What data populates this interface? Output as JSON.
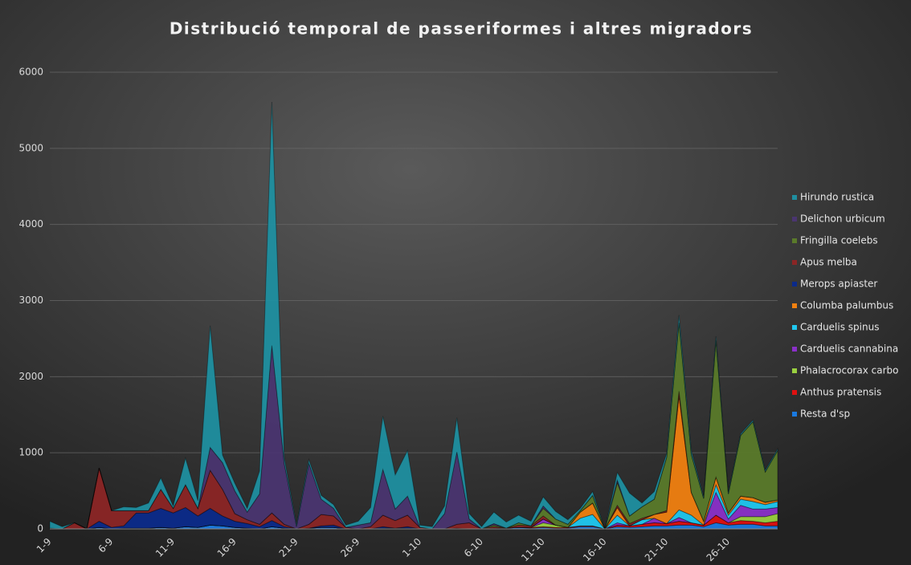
{
  "chart_data": {
    "type": "stacked-area",
    "title": "Distribució temporal de passeriformes i altres migradors",
    "categories": [
      "1-9",
      null,
      null,
      null,
      null,
      "6-9",
      null,
      null,
      null,
      null,
      "11-9",
      null,
      null,
      null,
      null,
      "16-9",
      null,
      null,
      null,
      null,
      "21-9",
      null,
      null,
      null,
      null,
      "26-9",
      null,
      null,
      null,
      null,
      "1-10",
      null,
      null,
      null,
      null,
      "6-10",
      null,
      null,
      null,
      null,
      "11-10",
      null,
      null,
      null,
      null,
      "16-10",
      null,
      null,
      null,
      null,
      "21-10",
      null,
      null,
      null,
      null,
      "26-10",
      null,
      null,
      null,
      null
    ],
    "series": [
      {
        "name": "Hirundo rustica",
        "color": "#1f8fa0",
        "values": [
          90,
          30,
          0,
          0,
          0,
          0,
          50,
          40,
          100,
          150,
          30,
          350,
          100,
          1600,
          100,
          100,
          50,
          300,
          3200,
          80,
          20,
          50,
          50,
          50,
          30,
          50,
          200,
          700,
          450,
          600,
          30,
          30,
          100,
          450,
          70,
          30,
          150,
          80,
          100,
          60,
          120,
          100,
          60,
          30,
          50,
          0,
          100,
          300,
          50,
          100,
          50,
          100,
          50,
          20,
          50,
          20,
          20,
          20,
          20,
          20
        ]
      },
      {
        "name": "Delichon urbicum",
        "color": "#4a3570",
        "values": [
          0,
          0,
          0,
          0,
          0,
          0,
          0,
          0,
          0,
          0,
          0,
          0,
          0,
          300,
          350,
          300,
          100,
          400,
          2200,
          800,
          30,
          800,
          200,
          100,
          0,
          50,
          50,
          600,
          150,
          250,
          0,
          0,
          200,
          950,
          50,
          0,
          20,
          0,
          0,
          0,
          30,
          0,
          0,
          0,
          0,
          0,
          30,
          0,
          0,
          0,
          0,
          0,
          0,
          0,
          0,
          0,
          0,
          0,
          0,
          0
        ]
      },
      {
        "name": "Fringilla coelebs",
        "color": "#5a7a2a",
        "values": [
          0,
          0,
          0,
          0,
          0,
          0,
          0,
          0,
          0,
          0,
          0,
          0,
          0,
          0,
          0,
          0,
          0,
          0,
          0,
          0,
          0,
          0,
          0,
          0,
          0,
          0,
          0,
          0,
          0,
          0,
          0,
          0,
          0,
          0,
          0,
          0,
          20,
          0,
          30,
          0,
          100,
          80,
          40,
          20,
          100,
          0,
          300,
          100,
          150,
          200,
          700,
          900,
          500,
          300,
          1800,
          250,
          800,
          1000,
          400,
          650
        ]
      },
      {
        "name": "Apus melba",
        "color": "#8b2525",
        "values": [
          0,
          0,
          80,
          0,
          700,
          220,
          200,
          30,
          30,
          250,
          60,
          300,
          100,
          500,
          350,
          100,
          50,
          30,
          100,
          30,
          0,
          50,
          150,
          120,
          20,
          0,
          30,
          150,
          100,
          150,
          20,
          0,
          0,
          50,
          80,
          0,
          20,
          0,
          30,
          20,
          40,
          0,
          0,
          0,
          0,
          0,
          30,
          30,
          20,
          0,
          20,
          60,
          0,
          0,
          0,
          0,
          0,
          0,
          0,
          0
        ]
      },
      {
        "name": "Merops apiaster",
        "color": "#0b2a8a",
        "values": [
          0,
          0,
          0,
          0,
          80,
          20,
          30,
          200,
          200,
          250,
          200,
          250,
          150,
          220,
          130,
          80,
          60,
          30,
          80,
          20,
          0,
          0,
          20,
          30,
          0,
          0,
          0,
          20,
          0,
          20,
          0,
          0,
          0,
          0,
          0,
          0,
          0,
          0,
          0,
          0,
          0,
          0,
          0,
          0,
          0,
          0,
          0,
          0,
          0,
          0,
          0,
          0,
          0,
          0,
          0,
          0,
          0,
          0,
          0,
          0
        ]
      },
      {
        "name": "Columba palumbus",
        "color": "#f08010",
        "values": [
          0,
          0,
          0,
          0,
          0,
          0,
          0,
          0,
          0,
          0,
          0,
          0,
          0,
          0,
          0,
          0,
          0,
          0,
          0,
          0,
          0,
          0,
          0,
          0,
          0,
          0,
          0,
          0,
          0,
          0,
          0,
          0,
          0,
          0,
          0,
          0,
          0,
          0,
          0,
          0,
          0,
          0,
          0,
          80,
          150,
          0,
          100,
          0,
          0,
          50,
          150,
          1500,
          300,
          50,
          100,
          30,
          40,
          50,
          30,
          20
        ]
      },
      {
        "name": "Carduelis spinus",
        "color": "#20c8f0",
        "values": [
          0,
          0,
          0,
          0,
          0,
          0,
          0,
          0,
          0,
          0,
          0,
          0,
          0,
          0,
          0,
          0,
          0,
          0,
          0,
          0,
          0,
          0,
          0,
          0,
          0,
          0,
          0,
          0,
          0,
          0,
          0,
          0,
          0,
          0,
          0,
          0,
          0,
          0,
          0,
          0,
          0,
          0,
          0,
          100,
          150,
          0,
          100,
          0,
          60,
          0,
          0,
          100,
          100,
          0,
          100,
          50,
          80,
          100,
          60,
          80
        ]
      },
      {
        "name": "Carduelis cannabina",
        "color": "#8a30c8",
        "values": [
          0,
          0,
          0,
          0,
          0,
          0,
          0,
          0,
          0,
          0,
          0,
          0,
          0,
          0,
          0,
          0,
          0,
          0,
          0,
          0,
          0,
          0,
          0,
          0,
          0,
          0,
          0,
          0,
          0,
          0,
          0,
          0,
          0,
          0,
          0,
          0,
          0,
          0,
          0,
          0,
          50,
          0,
          0,
          0,
          0,
          0,
          30,
          0,
          0,
          60,
          0,
          50,
          0,
          0,
          300,
          50,
          150,
          100,
          100,
          80
        ]
      },
      {
        "name": "Phalacrocorax carbo",
        "color": "#9ad040",
        "values": [
          0,
          0,
          0,
          0,
          0,
          0,
          0,
          0,
          0,
          0,
          0,
          0,
          0,
          0,
          0,
          0,
          0,
          0,
          0,
          0,
          0,
          0,
          0,
          0,
          0,
          0,
          0,
          0,
          0,
          0,
          0,
          0,
          0,
          0,
          0,
          0,
          0,
          0,
          0,
          0,
          50,
          30,
          0,
          0,
          0,
          0,
          0,
          0,
          0,
          0,
          0,
          0,
          0,
          0,
          0,
          0,
          50,
          60,
          80,
          100
        ]
      },
      {
        "name": "Anthus pratensis",
        "color": "#e01010",
        "values": [
          0,
          0,
          0,
          0,
          0,
          0,
          0,
          0,
          0,
          0,
          0,
          0,
          0,
          0,
          0,
          0,
          0,
          0,
          0,
          0,
          0,
          0,
          0,
          0,
          0,
          0,
          0,
          0,
          0,
          0,
          0,
          0,
          0,
          0,
          0,
          0,
          0,
          0,
          0,
          10,
          10,
          10,
          10,
          10,
          10,
          0,
          20,
          20,
          30,
          40,
          30,
          50,
          30,
          20,
          100,
          30,
          50,
          40,
          40,
          60
        ]
      },
      {
        "name": "Resta d'sp",
        "color": "#1a7ae0",
        "values": [
          10,
          0,
          0,
          0,
          20,
          0,
          10,
          10,
          10,
          20,
          10,
          30,
          20,
          50,
          40,
          20,
          10,
          0,
          30,
          10,
          0,
          10,
          20,
          20,
          0,
          0,
          0,
          10,
          10,
          10,
          0,
          0,
          0,
          10,
          0,
          0,
          10,
          10,
          20,
          10,
          20,
          10,
          10,
          30,
          30,
          0,
          30,
          20,
          30,
          40,
          40,
          50,
          50,
          30,
          80,
          50,
          60,
          60,
          40,
          40
        ]
      }
    ],
    "ylim": [
      0,
      6000
    ],
    "yticks": [
      0,
      1000,
      2000,
      3000,
      4000,
      5000,
      6000
    ],
    "grid": true,
    "legend": "right"
  }
}
